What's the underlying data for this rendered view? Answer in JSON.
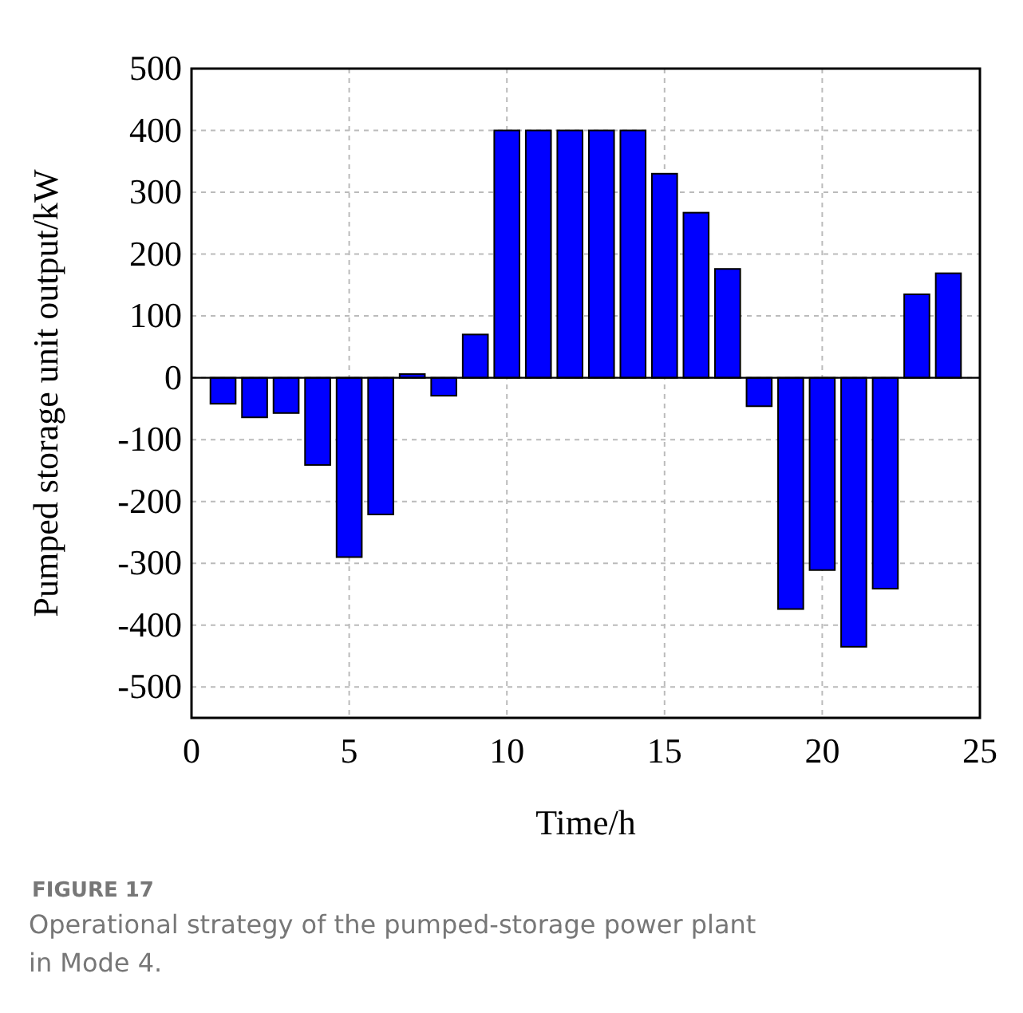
{
  "chart_data": {
    "type": "bar",
    "xlabel": "Time/h",
    "ylabel": "Pumped storage unit output/kW",
    "x": [
      1,
      2,
      3,
      4,
      5,
      6,
      7,
      8,
      9,
      10,
      11,
      12,
      13,
      14,
      15,
      16,
      17,
      18,
      19,
      20,
      21,
      22,
      23,
      24
    ],
    "values": [
      -42,
      -64,
      -57,
      -141,
      -290,
      -221,
      6,
      -29,
      70,
      400,
      400,
      400,
      400,
      400,
      330,
      267,
      176,
      -46,
      -374,
      -311,
      -435,
      -341,
      135,
      169
    ],
    "color": "#0000ff",
    "xlim": [
      0,
      25
    ],
    "xticks": [
      0,
      5,
      10,
      15,
      20,
      25
    ],
    "ylim": [
      -550,
      500
    ],
    "yticks": [
      -500,
      -400,
      -300,
      -200,
      -100,
      0,
      100,
      200,
      300,
      400,
      500
    ],
    "grid": true,
    "annotations": [
      "FIGURE 17",
      "Operational strategy of the pumped-storage power plant in Mode 4."
    ]
  }
}
